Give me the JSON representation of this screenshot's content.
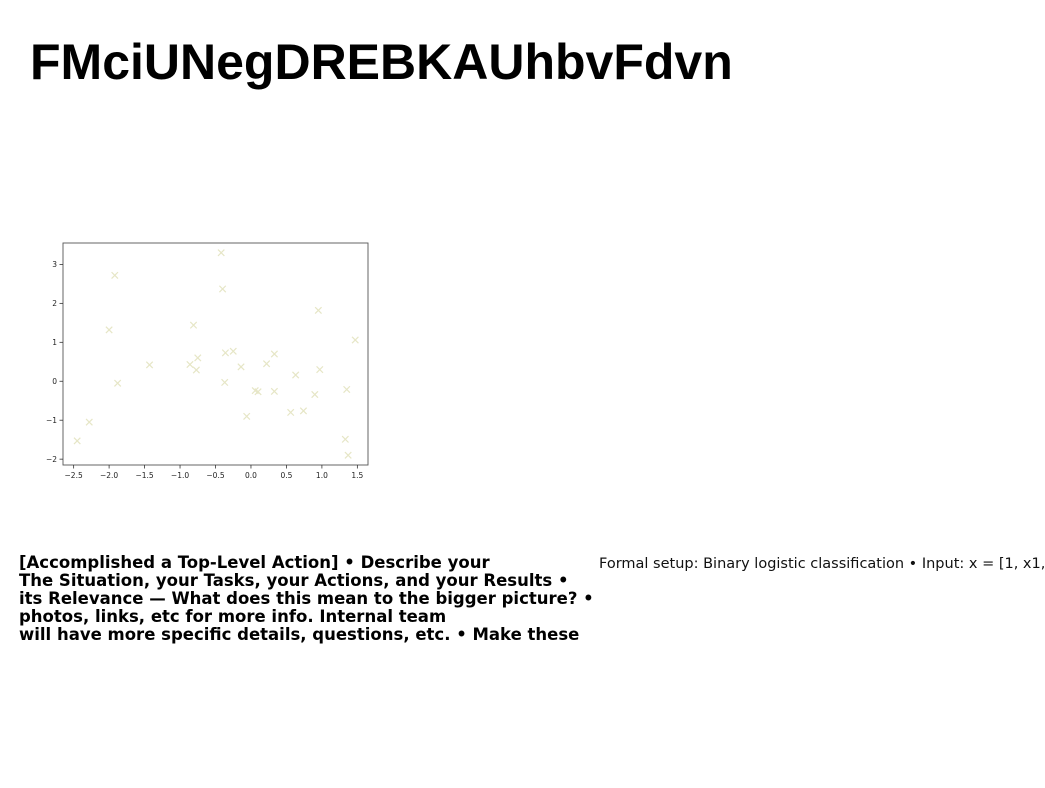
{
  "title": "FMciUNegDREBKAUhbvFdvn",
  "chart_data": {
    "type": "scatter",
    "marker": "x",
    "color": "#e6e6c6",
    "xlim": [
      -2.65,
      1.65
    ],
    "ylim": [
      -2.15,
      3.55
    ],
    "xticks": [
      -2.5,
      -2.0,
      -1.5,
      -1.0,
      -0.5,
      0.0,
      0.5,
      1.0,
      1.5
    ],
    "xtick_labels": [
      "−2.5",
      "−2.0",
      "−1.5",
      "−1.0",
      "−0.5",
      "0.0",
      "0.5",
      "1.0",
      "1.5"
    ],
    "yticks": [
      -2,
      -1,
      0,
      1,
      2,
      3
    ],
    "ytick_labels": [
      "−2",
      "−1",
      "0",
      "1",
      "2",
      "3"
    ],
    "grid": false,
    "points": [
      {
        "x": -2.45,
        "y": -1.53
      },
      {
        "x": -2.28,
        "y": -1.05
      },
      {
        "x": -2.0,
        "y": 1.32
      },
      {
        "x": -1.92,
        "y": 2.72
      },
      {
        "x": -1.88,
        "y": -0.05
      },
      {
        "x": -1.43,
        "y": 0.42
      },
      {
        "x": -0.86,
        "y": 0.43
      },
      {
        "x": -0.81,
        "y": 1.44
      },
      {
        "x": -0.75,
        "y": 0.6
      },
      {
        "x": -0.77,
        "y": 0.29
      },
      {
        "x": -0.42,
        "y": 3.3
      },
      {
        "x": -0.4,
        "y": 2.37
      },
      {
        "x": -0.36,
        "y": 0.73
      },
      {
        "x": -0.37,
        "y": -0.03
      },
      {
        "x": -0.25,
        "y": 0.77
      },
      {
        "x": -0.14,
        "y": 0.37
      },
      {
        "x": -0.06,
        "y": -0.9
      },
      {
        "x": 0.06,
        "y": -0.24
      },
      {
        "x": 0.1,
        "y": -0.27
      },
      {
        "x": 0.22,
        "y": 0.45
      },
      {
        "x": 0.33,
        "y": 0.7
      },
      {
        "x": 0.33,
        "y": -0.26
      },
      {
        "x": 0.56,
        "y": -0.8
      },
      {
        "x": 0.63,
        "y": 0.16
      },
      {
        "x": 0.74,
        "y": -0.76
      },
      {
        "x": 0.9,
        "y": -0.34
      },
      {
        "x": 0.95,
        "y": 1.82
      },
      {
        "x": 0.97,
        "y": 0.3
      },
      {
        "x": 1.33,
        "y": -1.49
      },
      {
        "x": 1.35,
        "y": -0.21
      },
      {
        "x": 1.37,
        "y": -1.9
      },
      {
        "x": 1.47,
        "y": 1.06
      }
    ]
  },
  "body_left": [
    "[Accomplished a Top-Level Action] • Describe your",
    "The Situation, your Tasks, your Actions, and your Results •",
    "its Relevance — What does this mean to the bigger picture? •",
    "photos, links, etc for more info. Internal team",
    "will have more specific details, questions, etc. • Make these"
  ],
  "body_right": "Formal setup: Binary logistic classification • Input: x = [1, x1,"
}
